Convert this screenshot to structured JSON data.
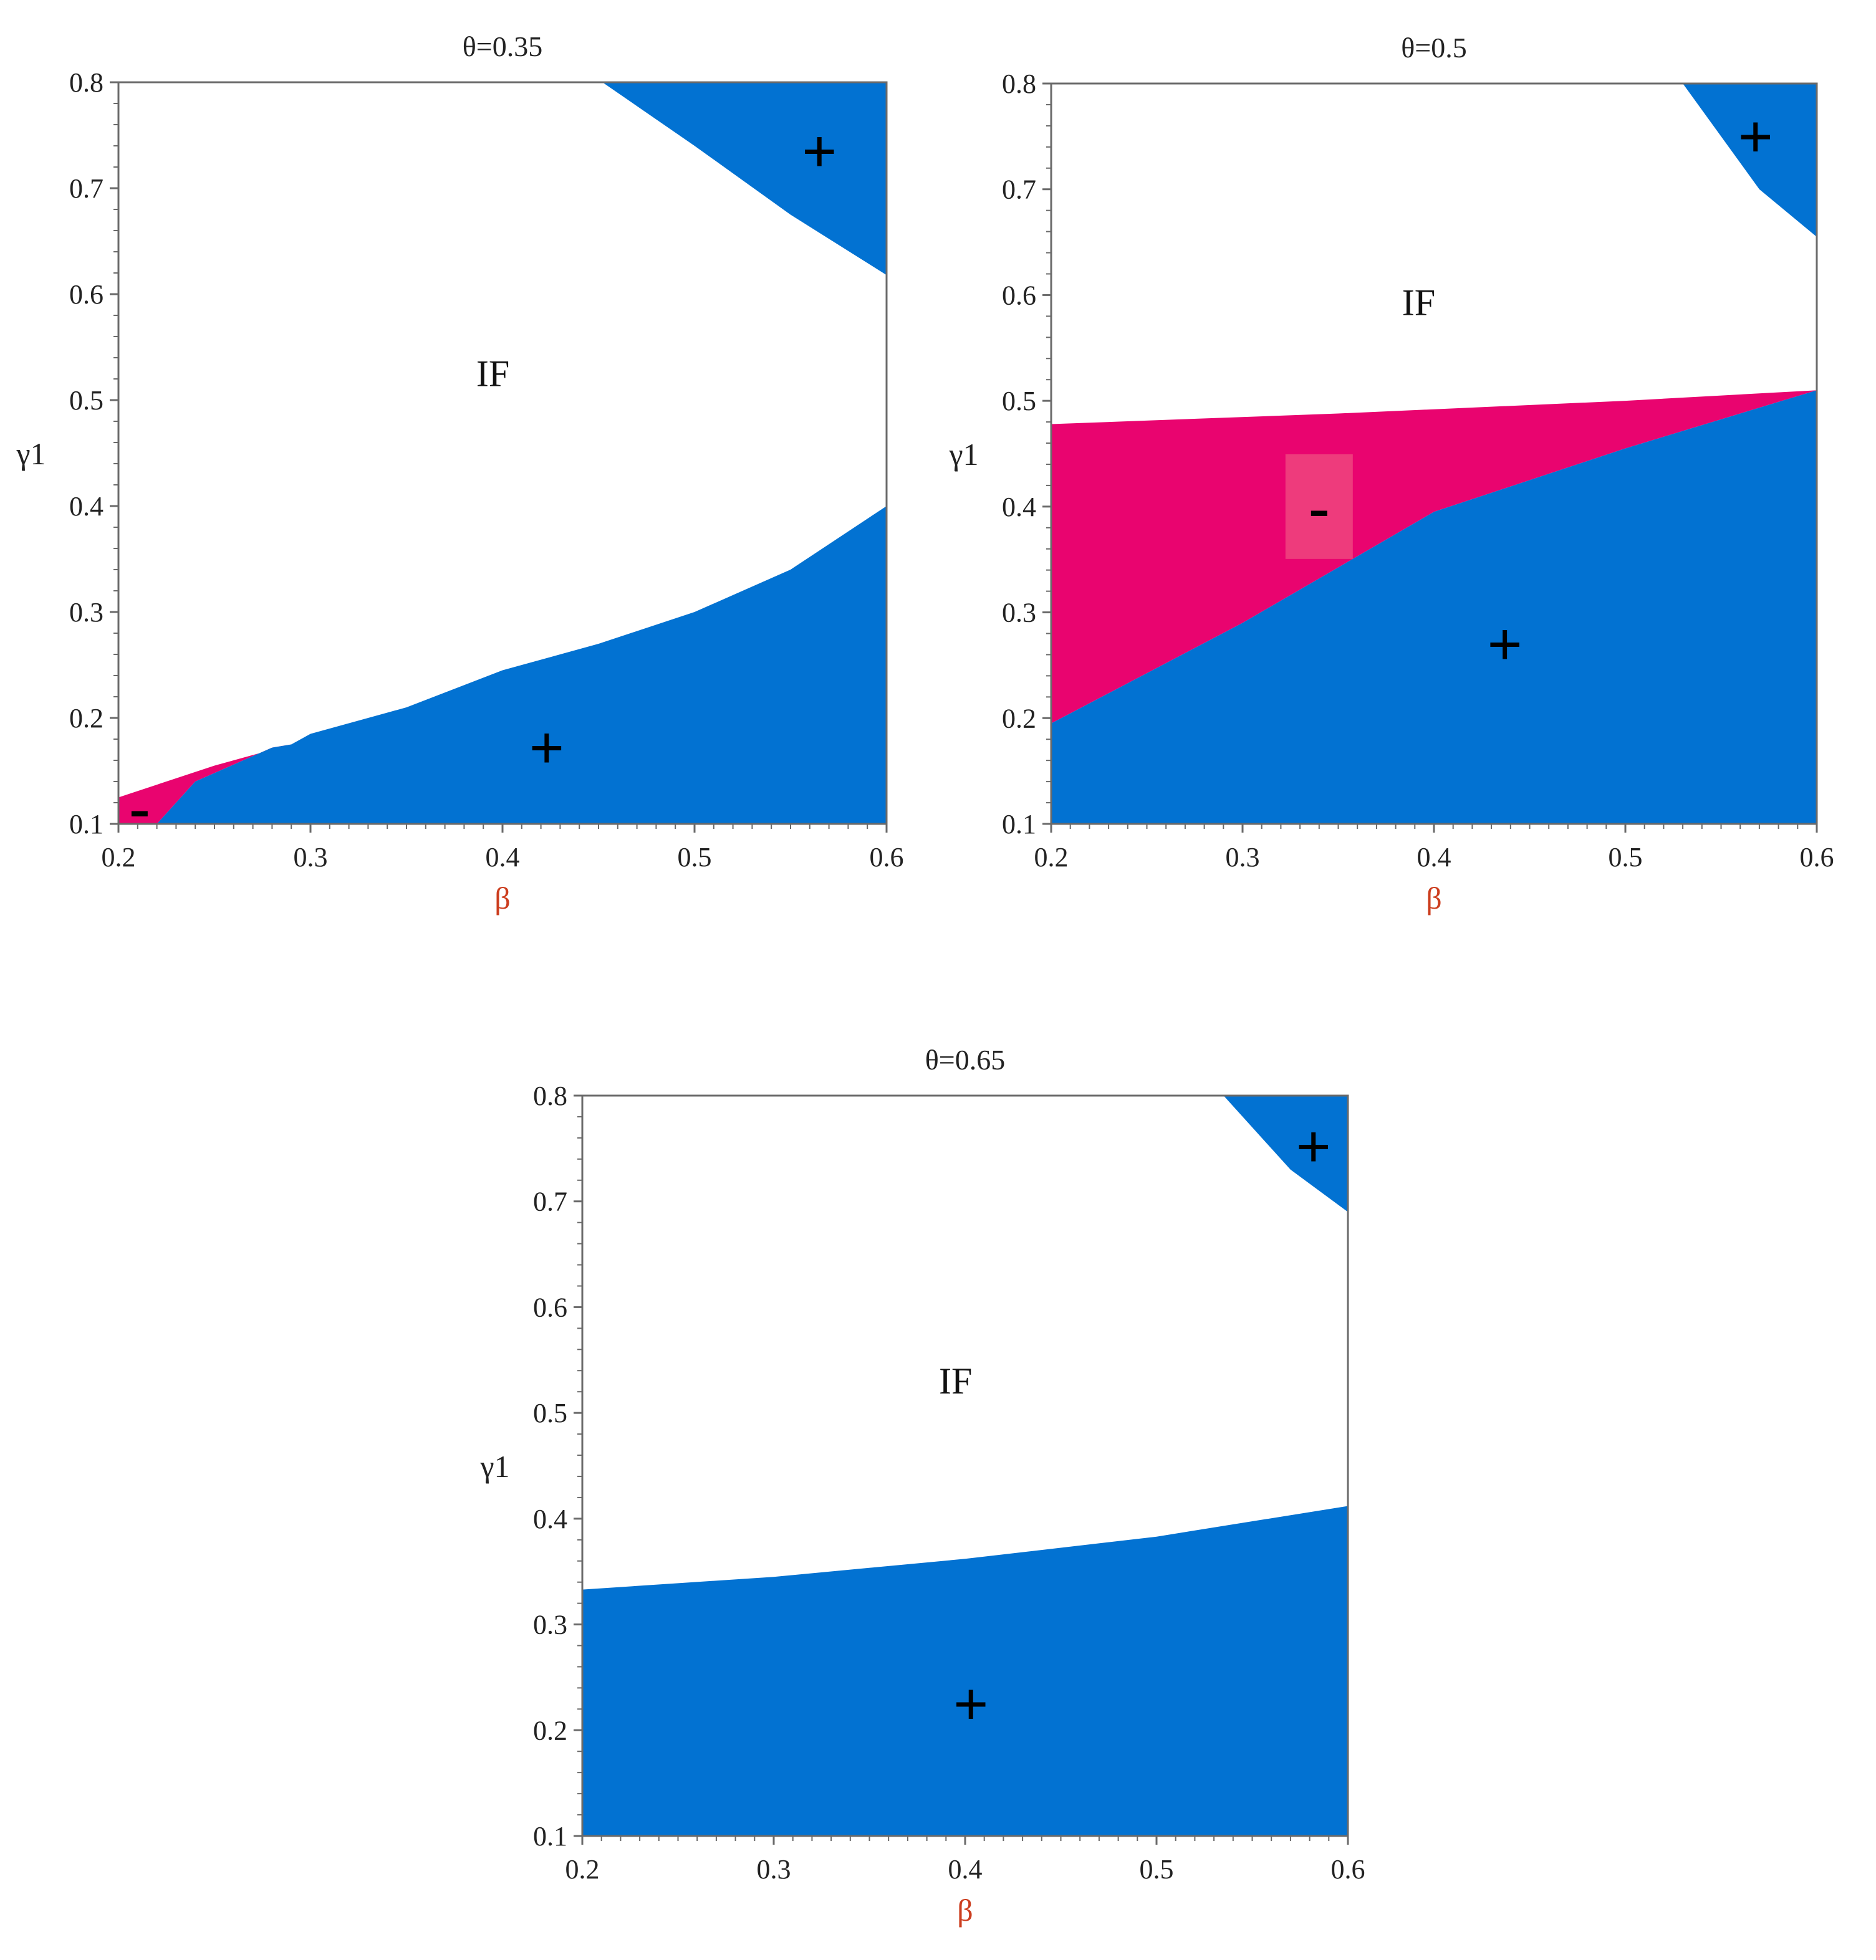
{
  "colors": {
    "positive": "#0272d2",
    "negative": "#e9046f",
    "negative_label_bg": "#ee3b7c",
    "indeterminate": "#ffffff",
    "frame": "#6a6a6a",
    "text": "#222222",
    "xlabel": "#cc3d1e"
  },
  "chart_data": [
    {
      "type": "region-map",
      "title": "θ=0.35",
      "xlabel": "β",
      "ylabel": "γ1",
      "xlim": [
        0.2,
        0.6
      ],
      "ylim": [
        0.1,
        0.8
      ],
      "x_ticks": [
        "0.2",
        "0.3",
        "0.4",
        "0.5",
        "0.6"
      ],
      "y_ticks": [
        "0.1",
        "0.2",
        "0.3",
        "0.4",
        "0.5",
        "0.6",
        "0.7",
        "0.8"
      ],
      "regions": [
        {
          "name": "+",
          "color": "positive",
          "polygon": [
            [
              0.452,
              0.8
            ],
            [
              0.6,
              0.8
            ],
            [
              0.6,
              0.618
            ],
            [
              0.55,
              0.675
            ],
            [
              0.5,
              0.74
            ]
          ]
        },
        {
          "name": "-",
          "color": "negative",
          "polygon": [
            [
              0.2,
              0.1
            ],
            [
              0.2,
              0.125
            ],
            [
              0.25,
              0.155
            ],
            [
              0.29,
              0.175
            ],
            [
              0.28,
              0.172
            ],
            [
              0.24,
              0.14
            ],
            [
              0.22,
              0.1
            ]
          ]
        },
        {
          "name": "+",
          "color": "positive",
          "polygon": [
            [
              0.22,
              0.1
            ],
            [
              0.24,
              0.14
            ],
            [
              0.28,
              0.172
            ],
            [
              0.29,
              0.175
            ],
            [
              0.3,
              0.185
            ],
            [
              0.35,
              0.21
            ],
            [
              0.4,
              0.245
            ],
            [
              0.45,
              0.27
            ],
            [
              0.5,
              0.3
            ],
            [
              0.55,
              0.34
            ],
            [
              0.6,
              0.4
            ],
            [
              0.6,
              0.1
            ]
          ]
        }
      ],
      "labels": [
        {
          "text": "IF",
          "x": 0.395,
          "y": 0.525,
          "kind": "region"
        },
        {
          "text": "+",
          "x": 0.565,
          "y": 0.735,
          "kind": "sign"
        },
        {
          "text": "+",
          "x": 0.423,
          "y": 0.172,
          "kind": "sign"
        },
        {
          "text": "-",
          "x": 0.211,
          "y": 0.116,
          "kind": "sign"
        }
      ]
    },
    {
      "type": "region-map",
      "title": "θ=0.5",
      "xlabel": "β",
      "ylabel": "γ1",
      "xlim": [
        0.2,
        0.6
      ],
      "ylim": [
        0.1,
        0.8
      ],
      "x_ticks": [
        "0.2",
        "0.3",
        "0.4",
        "0.5",
        "0.6"
      ],
      "y_ticks": [
        "0.1",
        "0.2",
        "0.3",
        "0.4",
        "0.5",
        "0.6",
        "0.7",
        "0.8"
      ],
      "regions": [
        {
          "name": "+",
          "color": "positive",
          "polygon": [
            [
              0.53,
              0.8
            ],
            [
              0.6,
              0.8
            ],
            [
              0.6,
              0.655
            ],
            [
              0.57,
              0.7
            ]
          ]
        },
        {
          "name": "-",
          "color": "negative",
          "polygon": [
            [
              0.2,
              0.478
            ],
            [
              0.35,
              0.488
            ],
            [
              0.5,
              0.5
            ],
            [
              0.6,
              0.51
            ],
            [
              0.5,
              0.455
            ],
            [
              0.4,
              0.395
            ],
            [
              0.3,
              0.29
            ],
            [
              0.2,
              0.195
            ]
          ]
        },
        {
          "name": "+",
          "color": "positive",
          "polygon": [
            [
              0.2,
              0.195
            ],
            [
              0.3,
              0.29
            ],
            [
              0.4,
              0.395
            ],
            [
              0.5,
              0.455
            ],
            [
              0.6,
              0.51
            ],
            [
              0.6,
              0.1
            ],
            [
              0.2,
              0.1
            ]
          ]
        }
      ],
      "labels": [
        {
          "text": "IF",
          "x": 0.392,
          "y": 0.593,
          "kind": "region"
        },
        {
          "text": "+",
          "x": 0.568,
          "y": 0.75,
          "kind": "sign"
        },
        {
          "text": "+",
          "x": 0.437,
          "y": 0.27,
          "kind": "sign"
        },
        {
          "text": "-",
          "x": 0.34,
          "y": 0.4,
          "kind": "sign-boxed"
        }
      ]
    },
    {
      "type": "region-map",
      "title": "θ=0.65",
      "xlabel": "β",
      "ylabel": "γ1",
      "xlim": [
        0.2,
        0.6
      ],
      "ylim": [
        0.1,
        0.8
      ],
      "x_ticks": [
        "0.2",
        "0.3",
        "0.4",
        "0.5",
        "0.6"
      ],
      "y_ticks": [
        "0.1",
        "0.2",
        "0.3",
        "0.4",
        "0.5",
        "0.6",
        "0.7",
        "0.8"
      ],
      "regions": [
        {
          "name": "+",
          "color": "positive",
          "polygon": [
            [
              0.535,
              0.8
            ],
            [
              0.6,
              0.8
            ],
            [
              0.6,
              0.69
            ],
            [
              0.57,
              0.73
            ]
          ]
        },
        {
          "name": "+",
          "color": "positive",
          "polygon": [
            [
              0.2,
              0.333
            ],
            [
              0.3,
              0.345
            ],
            [
              0.4,
              0.362
            ],
            [
              0.5,
              0.383
            ],
            [
              0.6,
              0.412
            ],
            [
              0.6,
              0.1
            ],
            [
              0.2,
              0.1
            ]
          ]
        }
      ],
      "labels": [
        {
          "text": "IF",
          "x": 0.395,
          "y": 0.53,
          "kind": "region"
        },
        {
          "text": "+",
          "x": 0.582,
          "y": 0.752,
          "kind": "sign"
        },
        {
          "text": "+",
          "x": 0.403,
          "y": 0.225,
          "kind": "sign"
        }
      ]
    }
  ]
}
